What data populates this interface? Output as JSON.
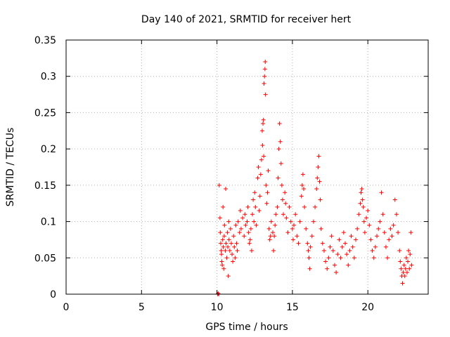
{
  "chart_data": {
    "type": "scatter",
    "title": "Day 140 of 2021, SRMTID for receiver hert",
    "xlabel": "GPS time / hours",
    "ylabel": "SRMTID / TECUs",
    "xlim": [
      0,
      24
    ],
    "ylim": [
      0,
      0.35
    ],
    "x_ticks": [
      0,
      5,
      10,
      15,
      20
    ],
    "x_tick_labels": [
      "0",
      "5",
      "10",
      "15",
      "20"
    ],
    "y_ticks": [
      0,
      0.05,
      0.1,
      0.15,
      0.2,
      0.25,
      0.3,
      0.35
    ],
    "y_tick_labels": [
      "0",
      "0.05",
      "0.1",
      "0.15",
      "0.2",
      "0.25",
      "0.3",
      "0.35"
    ],
    "grid": true,
    "marker": "+",
    "color": "#ff0000",
    "series": [
      {
        "name": "SRMTID",
        "points": [
          [
            10.05,
            0.0
          ],
          [
            10.08,
            0.001
          ],
          [
            10.12,
            0.0
          ],
          [
            10.15,
            0.15
          ],
          [
            10.2,
            0.105
          ],
          [
            10.22,
            0.085
          ],
          [
            10.25,
            0.07
          ],
          [
            10.28,
            0.06
          ],
          [
            10.3,
            0.055
          ],
          [
            10.32,
            0.045
          ],
          [
            10.35,
            0.04
          ],
          [
            10.38,
            0.075
          ],
          [
            10.4,
            0.12
          ],
          [
            10.42,
            0.065
          ],
          [
            10.45,
            0.035
          ],
          [
            10.48,
            0.08
          ],
          [
            10.5,
            0.095
          ],
          [
            10.55,
            0.06
          ],
          [
            10.58,
            0.145
          ],
          [
            10.6,
            0.07
          ],
          [
            10.65,
            0.05
          ],
          [
            10.7,
            0.085
          ],
          [
            10.72,
            0.065
          ],
          [
            10.75,
            0.025
          ],
          [
            10.78,
            0.1
          ],
          [
            10.8,
            0.075
          ],
          [
            10.85,
            0.06
          ],
          [
            10.9,
            0.09
          ],
          [
            10.95,
            0.07
          ],
          [
            11.0,
            0.055
          ],
          [
            11.05,
            0.045
          ],
          [
            11.1,
            0.08
          ],
          [
            11.15,
            0.065
          ],
          [
            11.2,
            0.05
          ],
          [
            11.25,
            0.095
          ],
          [
            11.3,
            0.07
          ],
          [
            11.35,
            0.06
          ],
          [
            11.4,
            0.1
          ],
          [
            11.5,
            0.085
          ],
          [
            11.55,
            0.115
          ],
          [
            11.6,
            0.09
          ],
          [
            11.7,
            0.105
          ],
          [
            11.8,
            0.08
          ],
          [
            11.85,
            0.11
          ],
          [
            11.9,
            0.095
          ],
          [
            12.0,
            0.1
          ],
          [
            12.05,
            0.12
          ],
          [
            12.1,
            0.085
          ],
          [
            12.15,
            0.07
          ],
          [
            12.2,
            0.075
          ],
          [
            12.25,
            0.09
          ],
          [
            12.3,
            0.06
          ],
          [
            12.35,
            0.11
          ],
          [
            12.4,
            0.13
          ],
          [
            12.45,
            0.1
          ],
          [
            12.5,
            0.14
          ],
          [
            12.55,
            0.12
          ],
          [
            12.6,
            0.095
          ],
          [
            12.7,
            0.16
          ],
          [
            12.75,
            0.175
          ],
          [
            12.8,
            0.115
          ],
          [
            12.85,
            0.135
          ],
          [
            12.9,
            0.165
          ],
          [
            12.95,
            0.185
          ],
          [
            13.0,
            0.225
          ],
          [
            13.02,
            0.205
          ],
          [
            13.05,
            0.235
          ],
          [
            13.08,
            0.24
          ],
          [
            13.1,
            0.19
          ],
          [
            13.12,
            0.29
          ],
          [
            13.15,
            0.3
          ],
          [
            13.18,
            0.31
          ],
          [
            13.2,
            0.32
          ],
          [
            13.22,
            0.275
          ],
          [
            13.25,
            0.15
          ],
          [
            13.3,
            0.125
          ],
          [
            13.35,
            0.14
          ],
          [
            13.4,
            0.17
          ],
          [
            13.45,
            0.09
          ],
          [
            13.5,
            0.075
          ],
          [
            13.55,
            0.08
          ],
          [
            13.6,
            0.1
          ],
          [
            13.7,
            0.085
          ],
          [
            13.75,
            0.06
          ],
          [
            13.8,
            0.08
          ],
          [
            13.85,
            0.095
          ],
          [
            13.9,
            0.11
          ],
          [
            14.0,
            0.12
          ],
          [
            14.05,
            0.16
          ],
          [
            14.1,
            0.2
          ],
          [
            14.15,
            0.235
          ],
          [
            14.2,
            0.21
          ],
          [
            14.25,
            0.18
          ],
          [
            14.3,
            0.15
          ],
          [
            14.35,
            0.13
          ],
          [
            14.4,
            0.11
          ],
          [
            14.5,
            0.14
          ],
          [
            14.55,
            0.125
          ],
          [
            14.6,
            0.105
          ],
          [
            14.7,
            0.085
          ],
          [
            14.8,
            0.12
          ],
          [
            14.9,
            0.1
          ],
          [
            15.0,
            0.09
          ],
          [
            15.05,
            0.075
          ],
          [
            15.1,
            0.095
          ],
          [
            15.2,
            0.11
          ],
          [
            15.3,
            0.08
          ],
          [
            15.4,
            0.07
          ],
          [
            15.5,
            0.1
          ],
          [
            15.6,
            0.135
          ],
          [
            15.65,
            0.15
          ],
          [
            15.7,
            0.165
          ],
          [
            15.75,
            0.145
          ],
          [
            15.8,
            0.12
          ],
          [
            15.9,
            0.09
          ],
          [
            16.0,
            0.07
          ],
          [
            16.05,
            0.06
          ],
          [
            16.1,
            0.05
          ],
          [
            16.15,
            0.035
          ],
          [
            16.2,
            0.065
          ],
          [
            16.3,
            0.08
          ],
          [
            16.4,
            0.1
          ],
          [
            16.5,
            0.12
          ],
          [
            16.6,
            0.145
          ],
          [
            16.65,
            0.16
          ],
          [
            16.7,
            0.175
          ],
          [
            16.75,
            0.19
          ],
          [
            16.8,
            0.155
          ],
          [
            16.85,
            0.13
          ],
          [
            16.9,
            0.09
          ],
          [
            17.0,
            0.07
          ],
          [
            17.1,
            0.06
          ],
          [
            17.2,
            0.045
          ],
          [
            17.3,
            0.035
          ],
          [
            17.4,
            0.05
          ],
          [
            17.5,
            0.065
          ],
          [
            17.6,
            0.08
          ],
          [
            17.7,
            0.06
          ],
          [
            17.8,
            0.04
          ],
          [
            17.9,
            0.03
          ],
          [
            18.0,
            0.055
          ],
          [
            18.1,
            0.075
          ],
          [
            18.2,
            0.05
          ],
          [
            18.3,
            0.065
          ],
          [
            18.4,
            0.085
          ],
          [
            18.5,
            0.07
          ],
          [
            18.6,
            0.055
          ],
          [
            18.7,
            0.04
          ],
          [
            18.8,
            0.06
          ],
          [
            18.9,
            0.08
          ],
          [
            19.0,
            0.065
          ],
          [
            19.1,
            0.05
          ],
          [
            19.2,
            0.075
          ],
          [
            19.3,
            0.09
          ],
          [
            19.4,
            0.11
          ],
          [
            19.5,
            0.125
          ],
          [
            19.55,
            0.14
          ],
          [
            19.6,
            0.145
          ],
          [
            19.65,
            0.13
          ],
          [
            19.7,
            0.12
          ],
          [
            19.75,
            0.1
          ],
          [
            19.8,
            0.085
          ],
          [
            19.9,
            0.105
          ],
          [
            20.0,
            0.115
          ],
          [
            20.1,
            0.095
          ],
          [
            20.2,
            0.075
          ],
          [
            20.3,
            0.06
          ],
          [
            20.4,
            0.05
          ],
          [
            20.5,
            0.065
          ],
          [
            20.6,
            0.08
          ],
          [
            20.7,
            0.09
          ],
          [
            20.8,
            0.1
          ],
          [
            20.9,
            0.14
          ],
          [
            21.0,
            0.11
          ],
          [
            21.1,
            0.085
          ],
          [
            21.2,
            0.065
          ],
          [
            21.3,
            0.05
          ],
          [
            21.4,
            0.075
          ],
          [
            21.5,
            0.09
          ],
          [
            21.6,
            0.08
          ],
          [
            21.7,
            0.095
          ],
          [
            21.8,
            0.13
          ],
          [
            21.9,
            0.11
          ],
          [
            22.0,
            0.085
          ],
          [
            22.1,
            0.06
          ],
          [
            22.15,
            0.045
          ],
          [
            22.2,
            0.035
          ],
          [
            22.25,
            0.025
          ],
          [
            22.3,
            0.015
          ],
          [
            22.35,
            0.03
          ],
          [
            22.4,
            0.04
          ],
          [
            22.45,
            0.025
          ],
          [
            22.5,
            0.035
          ],
          [
            22.55,
            0.05
          ],
          [
            22.6,
            0.03
          ],
          [
            22.65,
            0.045
          ],
          [
            22.7,
            0.06
          ],
          [
            22.75,
            0.035
          ],
          [
            22.8,
            0.055
          ],
          [
            22.85,
            0.085
          ],
          [
            22.9,
            0.04
          ]
        ]
      }
    ]
  }
}
